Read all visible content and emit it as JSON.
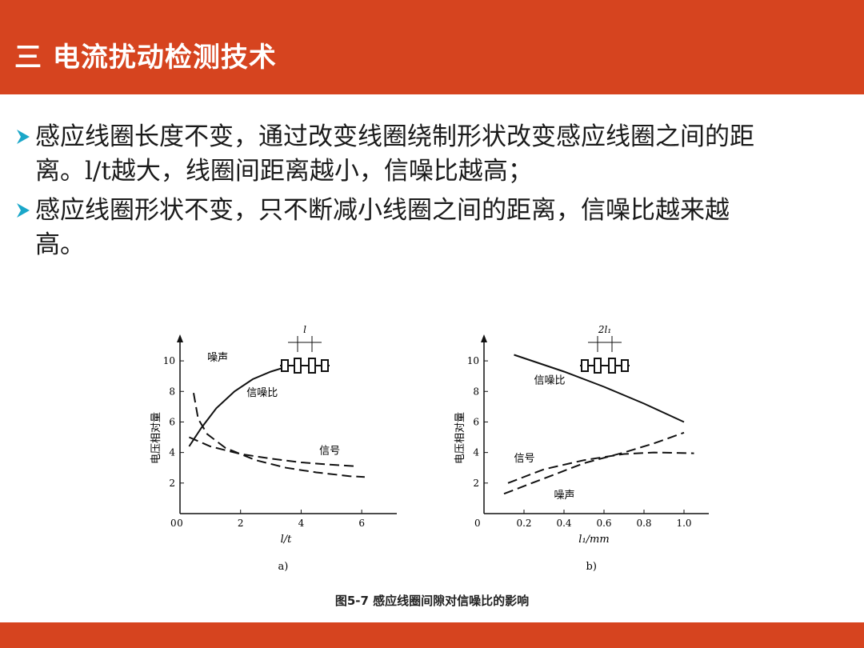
{
  "header": {
    "title": "三 电流扰动检测技术"
  },
  "bullets": [
    "感应线圈长度不变，通过改变线圈绕制形状改变感应线圈之间的距离。l/t越大，线圈间距离越小，信噪比越高；",
    "感应线圈形状不变，只不断减小线圈之间的距离，信噪比越来越高。"
  ],
  "figure": {
    "caption": "图5-7   感应线圈间隙对信噪比的影响",
    "colors": {
      "accent": "#d6441f",
      "bullet": "#1aa7c9"
    }
  },
  "chart_data": [
    {
      "type": "line",
      "label": "a)",
      "xlabel": "l/t",
      "ylabel": "电压相对量",
      "xlim": [
        0,
        7
      ],
      "ylim": [
        0,
        11
      ],
      "x_ticks": [
        "0",
        "2",
        "4",
        "6"
      ],
      "y_ticks": [
        "2",
        "4",
        "6",
        "8",
        "10"
      ],
      "inset_label": "l",
      "series": [
        {
          "name": "信噪比",
          "style": "solid",
          "points": [
            [
              0.3,
              4.4
            ],
            [
              0.7,
              5.6
            ],
            [
              1.2,
              6.9
            ],
            [
              1.8,
              8.0
            ],
            [
              2.4,
              8.8
            ],
            [
              3.0,
              9.3
            ],
            [
              3.5,
              9.6
            ]
          ]
        },
        {
          "name": "噪声",
          "style": "dashed",
          "points": [
            [
              0.45,
              7.9
            ],
            [
              0.6,
              6.2
            ],
            [
              0.9,
              5.2
            ],
            [
              1.5,
              4.3
            ],
            [
              2.5,
              3.5
            ],
            [
              3.5,
              3.0
            ],
            [
              4.5,
              2.7
            ],
            [
              5.6,
              2.45
            ],
            [
              6.1,
              2.4
            ]
          ]
        },
        {
          "name": "信号",
          "style": "dashed",
          "points": [
            [
              0.3,
              5.0
            ],
            [
              1.0,
              4.4
            ],
            [
              2.0,
              3.9
            ],
            [
              3.0,
              3.6
            ],
            [
              4.0,
              3.35
            ],
            [
              5.0,
              3.2
            ],
            [
              5.8,
              3.1
            ]
          ]
        }
      ]
    },
    {
      "type": "line",
      "label": "b)",
      "xlabel": "l₁/mm",
      "ylabel": "电压相对量",
      "xlim": [
        0,
        1.1
      ],
      "ylim": [
        0,
        11
      ],
      "x_ticks": [
        "0.2",
        "0.4",
        "0.6",
        "0.8",
        "1.0"
      ],
      "y_ticks": [
        "2",
        "4",
        "6",
        "8",
        "10"
      ],
      "inset_label": "2l₁",
      "series": [
        {
          "name": "信噪比",
          "style": "solid",
          "points": [
            [
              0.15,
              10.4
            ],
            [
              0.4,
              9.3
            ],
            [
              0.6,
              8.3
            ],
            [
              0.8,
              7.2
            ],
            [
              1.0,
              6.0
            ]
          ]
        },
        {
          "name": "信号",
          "style": "dashed",
          "points": [
            [
              0.12,
              2.0
            ],
            [
              0.3,
              2.9
            ],
            [
              0.5,
              3.5
            ],
            [
              0.7,
              3.9
            ],
            [
              0.85,
              4.0
            ],
            [
              1.05,
              3.95
            ]
          ]
        },
        {
          "name": "噪声",
          "style": "dashed",
          "points": [
            [
              0.1,
              1.3
            ],
            [
              0.3,
              2.3
            ],
            [
              0.5,
              3.3
            ],
            [
              0.7,
              4.0
            ],
            [
              0.85,
              4.6
            ],
            [
              1.0,
              5.3
            ]
          ]
        }
      ]
    }
  ]
}
